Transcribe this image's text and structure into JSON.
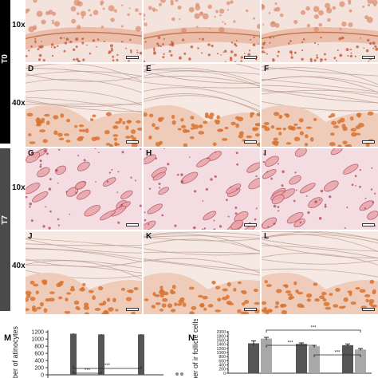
{
  "figure": {
    "time_labels": [
      "T0",
      "T7"
    ],
    "magnifications": [
      "10x",
      "40x",
      "10x",
      "40x"
    ],
    "panels": [
      {
        "letter": "",
        "tissue": "skin-10x"
      },
      {
        "letter": "",
        "tissue": "skin-10x"
      },
      {
        "letter": "",
        "tissue": "skin-10x"
      },
      {
        "letter": "D",
        "tissue": "epidermis-40x"
      },
      {
        "letter": "E",
        "tissue": "epidermis-40x"
      },
      {
        "letter": "F",
        "tissue": "epidermis-40x"
      },
      {
        "letter": "G",
        "tissue": "follicles-10x"
      },
      {
        "letter": "H",
        "tissue": "follicles-10x"
      },
      {
        "letter": "I",
        "tissue": "follicles-10x"
      },
      {
        "letter": "J",
        "tissue": "epidermis-40x"
      },
      {
        "letter": "K",
        "tissue": "epidermis-40x"
      },
      {
        "letter": "L",
        "tissue": "epidermis-40x"
      }
    ]
  },
  "chart_data": [
    {
      "letter": "M",
      "type": "bar",
      "ylabel": "ber of atinocytes",
      "yticks": [
        0,
        200,
        400,
        600,
        800,
        1000,
        1200
      ],
      "ylim": [
        0,
        1250
      ],
      "values": [
        1150,
        1130,
        1130
      ],
      "errors": [
        12,
        12,
        12
      ],
      "significance": [
        "***",
        "***"
      ],
      "colors": {
        "bar": "#555555"
      }
    },
    {
      "letter": "N",
      "type": "bar",
      "ylabel": "mber of ir follicle cells",
      "yticks": [
        0,
        200,
        400,
        600,
        800,
        1000,
        1200,
        1400,
        1600,
        1800,
        2000
      ],
      "ylim": [
        0,
        2050
      ],
      "groups": [
        {
          "values": [
            1450,
            1680
          ],
          "errors": [
            120,
            60
          ]
        },
        {
          "values": [
            1420,
            1310
          ],
          "errors": [
            50,
            40
          ]
        },
        {
          "values": [
            1360,
            1150
          ],
          "errors": [
            60,
            50
          ]
        }
      ],
      "significance": [
        "***",
        "***",
        "***"
      ],
      "colors": {
        "dark": "#555555",
        "light": "#a8a8a8"
      }
    }
  ]
}
